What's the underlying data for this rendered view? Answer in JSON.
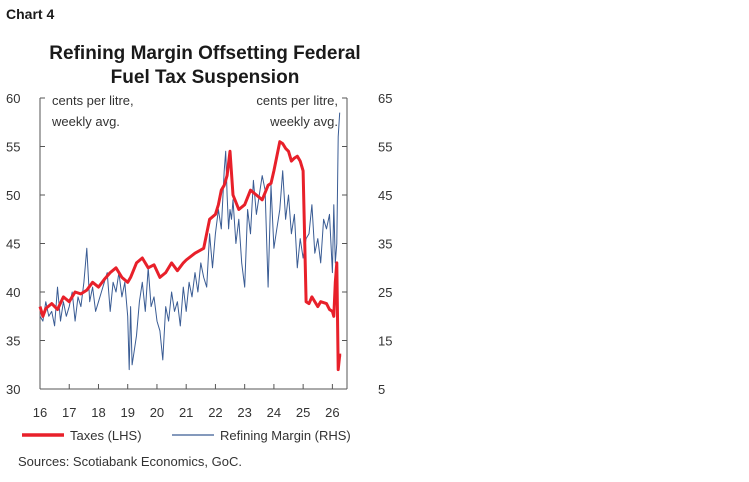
{
  "header": {
    "chart_label": "Chart 4"
  },
  "chart_data": {
    "type": "line",
    "title": "Refining Margin Offsetting Federal Fuel Tax Suspension",
    "title_lines": [
      "Refining Margin Offsetting Federal",
      "Fuel Tax Suspension"
    ],
    "left_axis": {
      "label_lines": [
        "cents per litre,",
        "weekly avg."
      ],
      "ylim": [
        30,
        60
      ],
      "ticks": [
        "30",
        "35",
        "40",
        "45",
        "50",
        "55",
        "60"
      ]
    },
    "right_axis": {
      "label_lines": [
        "cents per litre,",
        "weekly avg."
      ],
      "ylim": [
        5,
        65
      ],
      "ticks": [
        "5",
        "15",
        "25",
        "35",
        "45",
        "55",
        "65"
      ]
    },
    "xlim": [
      2016,
      2026.5
    ],
    "x_ticks": [
      "16",
      "17",
      "18",
      "19",
      "20",
      "21",
      "22",
      "23",
      "24",
      "25",
      "26"
    ],
    "grid": false,
    "legend_position": "bottom",
    "colors": {
      "taxes": "#e8202a",
      "margin": "#3a5c94"
    },
    "series": [
      {
        "name": "Taxes (LHS)",
        "axis": "left",
        "x": [
          2016.0,
          2016.1,
          2016.2,
          2016.4,
          2016.6,
          2016.8,
          2017.0,
          2017.2,
          2017.4,
          2017.6,
          2017.8,
          2018.0,
          2018.2,
          2018.4,
          2018.6,
          2018.8,
          2019.0,
          2019.1,
          2019.3,
          2019.5,
          2019.7,
          2019.9,
          2020.1,
          2020.3,
          2020.5,
          2020.7,
          2020.9,
          2021.0,
          2021.3,
          2021.6,
          2021.8,
          2022.0,
          2022.1,
          2022.2,
          2022.3,
          2022.4,
          2022.5,
          2022.6,
          2022.8,
          2023.0,
          2023.2,
          2023.4,
          2023.6,
          2023.8,
          2023.9,
          2024.0,
          2024.2,
          2024.3,
          2024.4,
          2024.5,
          2024.6,
          2024.7,
          2024.8,
          2024.9,
          2025.0,
          2025.1,
          2025.2,
          2025.3,
          2025.5,
          2025.6,
          2025.8,
          2025.9,
          2026.0,
          2026.05,
          2026.1,
          2026.15,
          2026.2,
          2026.25,
          2026.3
        ],
        "values": [
          38.5,
          37.5,
          38.3,
          38.8,
          38.2,
          39.5,
          39.0,
          40.0,
          39.8,
          40.2,
          41.0,
          40.5,
          41.3,
          42.0,
          42.5,
          41.5,
          41.0,
          41.5,
          43.0,
          43.5,
          42.5,
          42.8,
          41.5,
          42.0,
          43.0,
          42.2,
          43.0,
          43.3,
          44.0,
          44.5,
          47.5,
          48.0,
          49.0,
          50.5,
          51.0,
          52.0,
          54.5,
          50.0,
          48.5,
          49.0,
          50.5,
          50.0,
          49.5,
          51.0,
          51.2,
          52.5,
          55.5,
          55.3,
          54.8,
          54.5,
          53.5,
          53.8,
          54.0,
          53.5,
          52.5,
          39.0,
          38.8,
          39.5,
          38.5,
          39.0,
          38.8,
          38.2,
          38.0,
          37.5,
          41.0,
          43.0,
          32.0,
          33.5,
          33.5
        ]
      },
      {
        "name": "Refining Margin (RHS)",
        "axis": "right",
        "x": [
          2016.0,
          2016.1,
          2016.2,
          2016.3,
          2016.4,
          2016.5,
          2016.6,
          2016.7,
          2016.8,
          2016.9,
          2017.0,
          2017.1,
          2017.2,
          2017.3,
          2017.4,
          2017.5,
          2017.6,
          2017.7,
          2017.8,
          2017.9,
          2018.0,
          2018.1,
          2018.2,
          2018.3,
          2018.4,
          2018.5,
          2018.6,
          2018.7,
          2018.8,
          2018.9,
          2019.0,
          2019.05,
          2019.1,
          2019.15,
          2019.2,
          2019.3,
          2019.4,
          2019.5,
          2019.6,
          2019.7,
          2019.8,
          2019.9,
          2020.0,
          2020.1,
          2020.2,
          2020.3,
          2020.4,
          2020.5,
          2020.6,
          2020.7,
          2020.8,
          2020.9,
          2021.0,
          2021.1,
          2021.2,
          2021.3,
          2021.4,
          2021.5,
          2021.6,
          2021.7,
          2021.8,
          2021.9,
          2022.0,
          2022.1,
          2022.2,
          2022.3,
          2022.35,
          2022.4,
          2022.45,
          2022.5,
          2022.55,
          2022.6,
          2022.7,
          2022.8,
          2022.9,
          2023.0,
          2023.1,
          2023.2,
          2023.3,
          2023.4,
          2023.5,
          2023.6,
          2023.7,
          2023.8,
          2023.9,
          2024.0,
          2024.1,
          2024.2,
          2024.3,
          2024.4,
          2024.5,
          2024.6,
          2024.7,
          2024.8,
          2024.9,
          2025.0,
          2025.1,
          2025.2,
          2025.3,
          2025.4,
          2025.5,
          2025.6,
          2025.7,
          2025.8,
          2025.9,
          2026.0,
          2026.05,
          2026.1,
          2026.15,
          2026.2,
          2026.25
        ],
        "values": [
          20,
          19,
          23,
          20,
          21,
          18,
          26,
          19,
          23,
          20,
          22,
          25,
          19,
          24,
          22,
          27,
          34,
          23,
          26,
          21,
          23,
          25,
          27,
          29,
          21,
          27,
          25,
          29,
          24,
          27,
          20,
          9,
          22,
          10,
          12,
          16,
          23,
          27,
          21,
          30,
          22,
          24,
          19,
          17,
          11,
          22,
          19,
          25,
          21,
          23,
          18,
          26,
          21,
          27,
          24,
          29,
          25,
          31,
          28,
          26,
          37,
          30,
          37,
          42,
          38,
          50,
          54,
          45,
          38,
          42,
          40,
          44,
          35,
          40,
          31,
          26,
          42,
          37,
          48,
          41,
          45,
          49,
          46,
          26,
          47,
          34,
          38,
          42,
          50,
          40,
          45,
          37,
          41,
          30,
          36,
          32,
          36,
          37,
          43,
          33,
          36,
          31,
          40,
          38,
          41,
          29,
          43,
          31,
          35,
          57,
          62
        ]
      }
    ]
  },
  "source": "Sources: Scotiabank Economics, GoC."
}
